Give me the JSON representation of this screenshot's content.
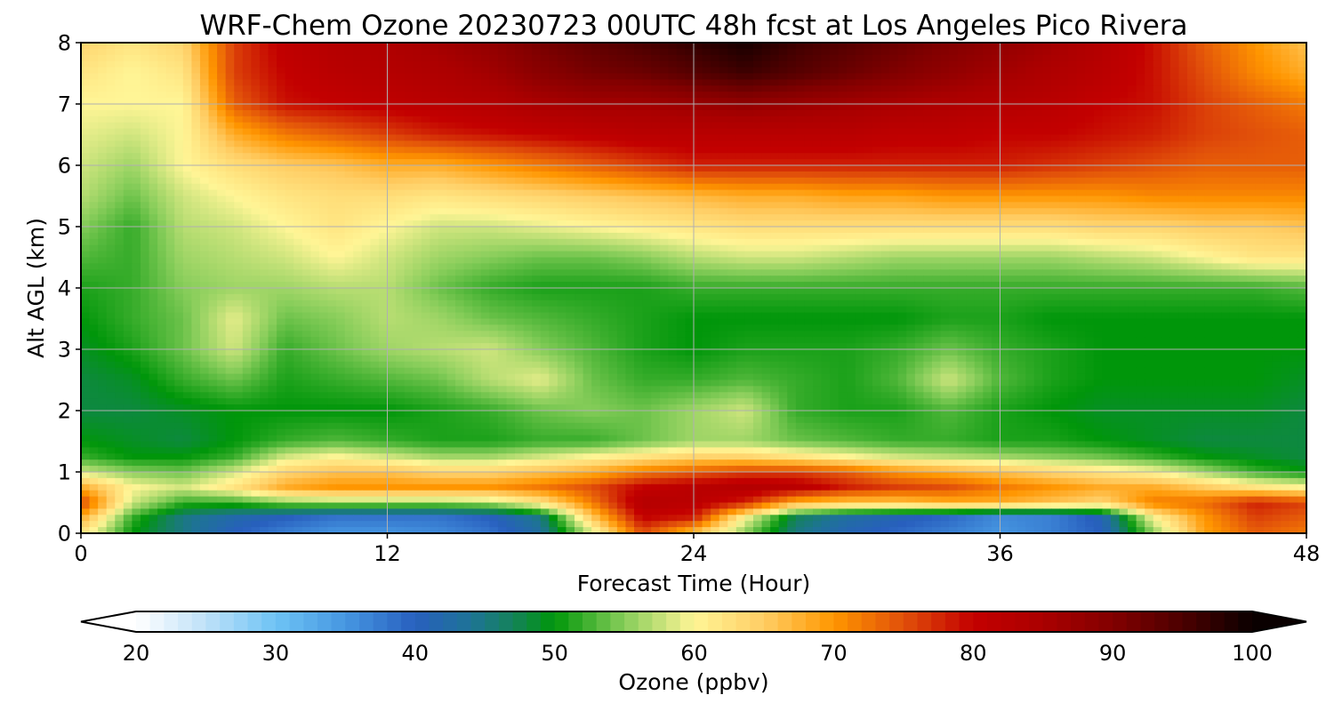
{
  "chart_data": {
    "type": "heatmap",
    "title": "WRF-Chem Ozone  20230723 00UTC 48h fcst at Los Angeles Pico Rivera",
    "xlabel": "Forecast Time (Hour)",
    "ylabel": "Alt AGL (km)",
    "xlim": [
      0,
      48
    ],
    "ylim": [
      0,
      8
    ],
    "x_ticks": [
      "0",
      "12",
      "24",
      "36",
      "48"
    ],
    "y_ticks": [
      "0",
      "1",
      "2",
      "3",
      "4",
      "5",
      "6",
      "7",
      "8"
    ],
    "grid": true,
    "colorbar": {
      "label": "Ozone  (ppbv)",
      "min": 20,
      "max": 100,
      "step": 1,
      "extend": "both",
      "ticks": [
        "20",
        "30",
        "40",
        "50",
        "60",
        "70",
        "80",
        "90",
        "100"
      ]
    },
    "x": [
      0,
      2,
      4,
      6,
      8,
      10,
      12,
      14,
      16,
      18,
      20,
      22,
      24,
      26,
      28,
      30,
      32,
      34,
      36,
      38,
      40,
      42,
      44,
      46,
      48
    ],
    "y": [
      0,
      0.25,
      0.5,
      0.75,
      1,
      1.25,
      1.5,
      2,
      2.5,
      3,
      3.5,
      4,
      4.5,
      5,
      5.5,
      6,
      6.5,
      7,
      7.5,
      8
    ],
    "z": [
      [
        62,
        50,
        45,
        40,
        37,
        35,
        35,
        36,
        38,
        43,
        58,
        75,
        66,
        55,
        45,
        41,
        39,
        37,
        35,
        37,
        40,
        55,
        69,
        74,
        72
      ],
      [
        68,
        52,
        45,
        42,
        40,
        38,
        38,
        38,
        40,
        45,
        65,
        80,
        78,
        60,
        47,
        43,
        41,
        39,
        36,
        37,
        41,
        60,
        70,
        76,
        74
      ],
      [
        76,
        58,
        52,
        52,
        55,
        56,
        56,
        56,
        57,
        62,
        72,
        83,
        82,
        78,
        68,
        66,
        66,
        68,
        68,
        66,
        64,
        72,
        73,
        78,
        76
      ],
      [
        68,
        60,
        58,
        62,
        68,
        70,
        70,
        70,
        70,
        72,
        75,
        80,
        82,
        83,
        82,
        78,
        76,
        75,
        72,
        70,
        68,
        68,
        65,
        62,
        60
      ],
      [
        58,
        55,
        54,
        58,
        64,
        66,
        66,
        64,
        64,
        66,
        68,
        72,
        74,
        76,
        76,
        74,
        70,
        68,
        66,
        64,
        62,
        60,
        56,
        52,
        50
      ],
      [
        52,
        50,
        50,
        52,
        58,
        60,
        58,
        56,
        56,
        58,
        60,
        62,
        64,
        64,
        62,
        60,
        58,
        57,
        56,
        55,
        54,
        52,
        50,
        49,
        48
      ],
      [
        50,
        49,
        48,
        50,
        52,
        53,
        52,
        51,
        51,
        52,
        52,
        54,
        56,
        56,
        54,
        53,
        52,
        52,
        51,
        51,
        50,
        49,
        48,
        48,
        48
      ],
      [
        48,
        48,
        49,
        50,
        50,
        50,
        50,
        51,
        52,
        54,
        55,
        54,
        56,
        58,
        52,
        51,
        51,
        53,
        51,
        50,
        49,
        49,
        49,
        49,
        48
      ],
      [
        48,
        49,
        52,
        54,
        51,
        52,
        53,
        54,
        57,
        59,
        54,
        52,
        52,
        53,
        52,
        51,
        53,
        58,
        53,
        51,
        50,
        50,
        50,
        50,
        49
      ],
      [
        49,
        51,
        54,
        58,
        52,
        54,
        56,
        57,
        58,
        55,
        53,
        51,
        50,
        51,
        51,
        51,
        52,
        54,
        52,
        51,
        50,
        50,
        50,
        50,
        50
      ],
      [
        50,
        52,
        54,
        59,
        54,
        55,
        57,
        56,
        54,
        53,
        52,
        51,
        50,
        50,
        50,
        50,
        50,
        51,
        51,
        50,
        50,
        50,
        50,
        50,
        50
      ],
      [
        51,
        52,
        55,
        56,
        56,
        57,
        57,
        54,
        52,
        51,
        51,
        51,
        52,
        52,
        52,
        52,
        52,
        52,
        52,
        52,
        52,
        52,
        52,
        52,
        53
      ],
      [
        53,
        52,
        56,
        57,
        58,
        60,
        58,
        56,
        55,
        54,
        54,
        55,
        57,
        58,
        58,
        57,
        56,
        56,
        56,
        56,
        57,
        58,
        60,
        62,
        62
      ],
      [
        55,
        52,
        57,
        58,
        60,
        62,
        60,
        58,
        58,
        59,
        60,
        61,
        62,
        63,
        63,
        63,
        63,
        63,
        63,
        63,
        64,
        64,
        65,
        65,
        66
      ],
      [
        57,
        54,
        58,
        60,
        62,
        63,
        63,
        62,
        63,
        64,
        65,
        66,
        67,
        68,
        68,
        69,
        69,
        70,
        70,
        70,
        70,
        71,
        71,
        71,
        71
      ],
      [
        58,
        56,
        60,
        63,
        65,
        66,
        68,
        68,
        70,
        72,
        74,
        76,
        78,
        78,
        78,
        78,
        78,
        78,
        78,
        77,
        76,
        75,
        74,
        74,
        74
      ],
      [
        59,
        58,
        60,
        68,
        72,
        74,
        76,
        78,
        79,
        80,
        81,
        82,
        82,
        82,
        82,
        82,
        81,
        81,
        80,
        80,
        79,
        78,
        76,
        75,
        74
      ],
      [
        60,
        60,
        60,
        74,
        79,
        80,
        81,
        82,
        83,
        85,
        86,
        86,
        87,
        88,
        87,
        86,
        85,
        84,
        83,
        82,
        80,
        79,
        76,
        74,
        72
      ],
      [
        62,
        60,
        62,
        76,
        80,
        82,
        83,
        84,
        86,
        89,
        91,
        92,
        94,
        96,
        94,
        92,
        90,
        88,
        86,
        84,
        82,
        79,
        75,
        71,
        68
      ],
      [
        64,
        62,
        64,
        76,
        81,
        83,
        84,
        86,
        88,
        91,
        93,
        95,
        97,
        99,
        96,
        94,
        92,
        90,
        88,
        86,
        83,
        79,
        74,
        70,
        66
      ]
    ]
  }
}
